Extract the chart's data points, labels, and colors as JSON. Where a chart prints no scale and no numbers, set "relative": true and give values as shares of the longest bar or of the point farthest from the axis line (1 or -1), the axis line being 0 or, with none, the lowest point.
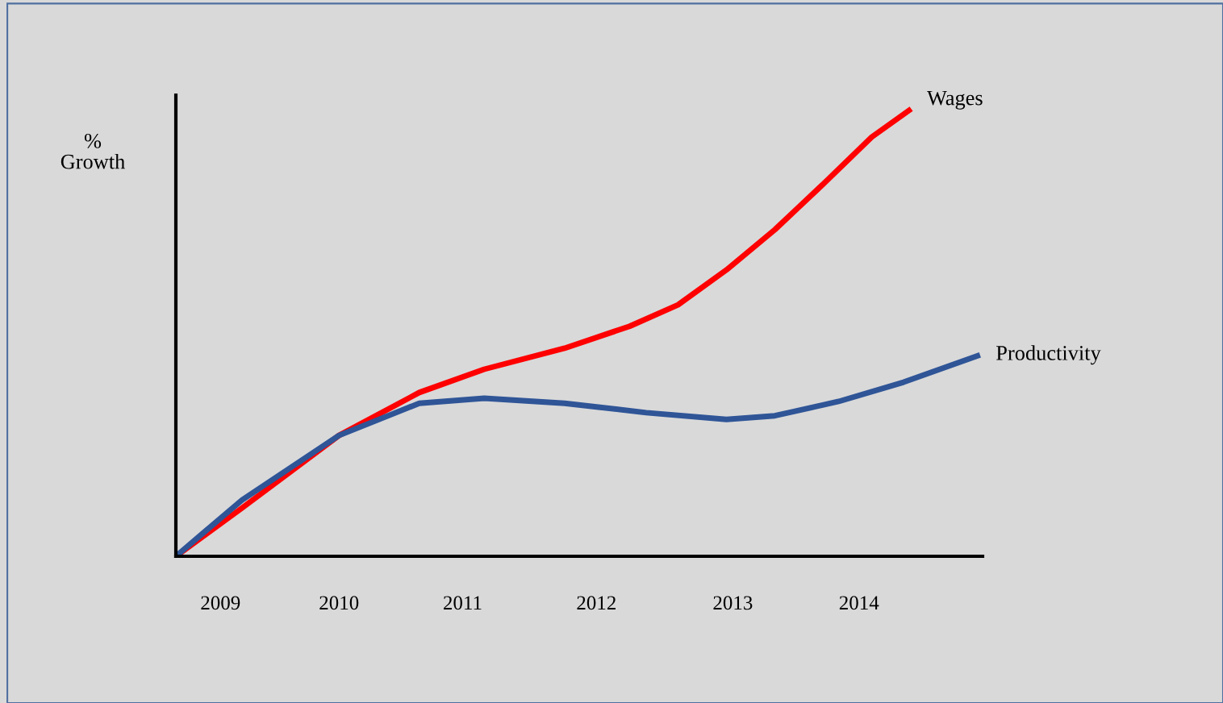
{
  "chart_data": {
    "type": "line",
    "relative": true,
    "ylabel": "%\nGrowth",
    "xlim": [
      2008.65,
      2014.98
    ],
    "xticks": [
      {
        "value": 2009,
        "label": "2009"
      },
      {
        "value": 2009.93,
        "label": "2010"
      },
      {
        "value": 2010.9,
        "label": "2011"
      },
      {
        "value": 2011.95,
        "label": "2012"
      },
      {
        "value": 2013.02,
        "label": "2013"
      },
      {
        "value": 2014.01,
        "label": "2014"
      }
    ],
    "series": [
      {
        "name": "Wages",
        "color": "#ff0000",
        "x": [
          2008.65,
          2009.17,
          2009.93,
          2010.56,
          2011.07,
          2011.7,
          2012.21,
          2012.59,
          2012.97,
          2013.35,
          2013.73,
          2014.11,
          2014.42
        ],
        "values": [
          0,
          0.108,
          0.27,
          0.366,
          0.418,
          0.465,
          0.514,
          0.562,
          0.64,
          0.73,
          0.832,
          0.937,
          1.0
        ]
      },
      {
        "name": "Productivity",
        "color": "#2f5597",
        "x": [
          2008.65,
          2009.17,
          2009.93,
          2010.56,
          2011.07,
          2011.7,
          2012.34,
          2012.97,
          2013.35,
          2013.85,
          2014.36,
          2014.96
        ],
        "values": [
          0,
          0.126,
          0.27,
          0.342,
          0.353,
          0.342,
          0.321,
          0.306,
          0.314,
          0.346,
          0.389,
          0.45
        ]
      }
    ],
    "grid": false,
    "legend": false,
    "marker": "none",
    "line_style": "solid"
  }
}
